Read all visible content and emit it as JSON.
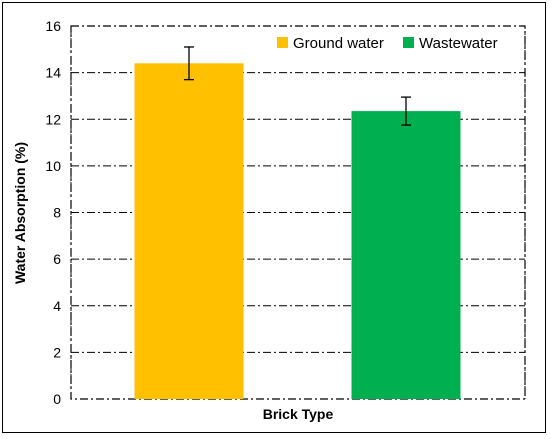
{
  "chart_data": {
    "type": "bar",
    "title": "",
    "xlabel": "Brick Type",
    "ylabel": "Water Absorption (%)",
    "ylim": [
      0,
      16
    ],
    "yticks": [
      0,
      2,
      4,
      6,
      8,
      10,
      12,
      14,
      16
    ],
    "grid": true,
    "legend_placement": "top-right",
    "series": [
      {
        "name": "Ground water",
        "value": 14.4,
        "error": 0.7,
        "color": "#ffc000"
      },
      {
        "name": "Wastewater",
        "value": 12.35,
        "error": 0.6,
        "color": "#00b050"
      }
    ]
  }
}
